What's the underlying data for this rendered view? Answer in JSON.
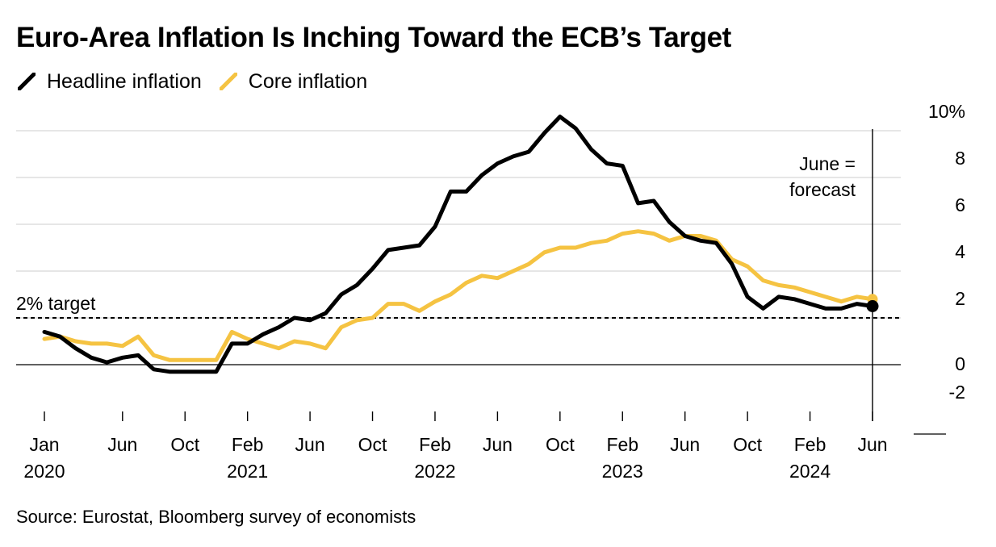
{
  "title": "Euro-Area Inflation Is Inching Toward the ECB’s Target",
  "legend": [
    {
      "label": "Headline inflation",
      "color": "#000000"
    },
    {
      "label": "Core inflation",
      "color": "#f5c342"
    }
  ],
  "source": "Source: Eurostat, Bloomberg survey of economists",
  "chart_data": {
    "type": "line",
    "x": [
      "2020-01",
      "2020-02",
      "2020-03",
      "2020-04",
      "2020-05",
      "2020-06",
      "2020-07",
      "2020-08",
      "2020-09",
      "2020-10",
      "2020-11",
      "2020-12",
      "2021-01",
      "2021-02",
      "2021-03",
      "2021-04",
      "2021-05",
      "2021-06",
      "2021-07",
      "2021-08",
      "2021-09",
      "2021-10",
      "2021-11",
      "2021-12",
      "2022-01",
      "2022-02",
      "2022-03",
      "2022-04",
      "2022-05",
      "2022-06",
      "2022-07",
      "2022-08",
      "2022-09",
      "2022-10",
      "2022-11",
      "2022-12",
      "2023-01",
      "2023-02",
      "2023-03",
      "2023-04",
      "2023-05",
      "2023-06",
      "2023-07",
      "2023-08",
      "2023-09",
      "2023-10",
      "2023-11",
      "2023-12",
      "2024-01",
      "2024-02",
      "2024-03",
      "2024-04",
      "2024-05",
      "2024-06"
    ],
    "series": [
      {
        "name": "Headline inflation",
        "color": "#000000",
        "values": [
          1.4,
          1.2,
          0.7,
          0.3,
          0.1,
          0.3,
          0.4,
          -0.2,
          -0.3,
          -0.3,
          -0.3,
          -0.3,
          0.9,
          0.9,
          1.3,
          1.6,
          2.0,
          1.9,
          2.2,
          3.0,
          3.4,
          4.1,
          4.9,
          5.0,
          5.1,
          5.9,
          7.4,
          7.4,
          8.1,
          8.6,
          8.9,
          9.1,
          9.9,
          10.6,
          10.1,
          9.2,
          8.6,
          8.5,
          6.9,
          7.0,
          6.1,
          5.5,
          5.3,
          5.2,
          4.3,
          2.9,
          2.4,
          2.9,
          2.8,
          2.6,
          2.4,
          2.4,
          2.6,
          2.5
        ]
      },
      {
        "name": "Core inflation",
        "color": "#f5c342",
        "values": [
          1.1,
          1.2,
          1.0,
          0.9,
          0.9,
          0.8,
          1.2,
          0.4,
          0.2,
          0.2,
          0.2,
          0.2,
          1.4,
          1.1,
          0.9,
          0.7,
          1.0,
          0.9,
          0.7,
          1.6,
          1.9,
          2.0,
          2.6,
          2.6,
          2.3,
          2.7,
          3.0,
          3.5,
          3.8,
          3.7,
          4.0,
          4.3,
          4.8,
          5.0,
          5.0,
          5.2,
          5.3,
          5.6,
          5.7,
          5.6,
          5.3,
          5.5,
          5.5,
          5.3,
          4.5,
          4.2,
          3.6,
          3.4,
          3.3,
          3.1,
          2.9,
          2.7,
          2.9,
          2.8
        ]
      }
    ],
    "xticks": [
      {
        "month": "Jan",
        "year": "2020",
        "x": "2020-01"
      },
      {
        "month": "Jun",
        "year": "",
        "x": "2020-06"
      },
      {
        "month": "Oct",
        "year": "",
        "x": "2020-10"
      },
      {
        "month": "Feb",
        "year": "2021",
        "x": "2021-02"
      },
      {
        "month": "Jun",
        "year": "",
        "x": "2021-06"
      },
      {
        "month": "Oct",
        "year": "",
        "x": "2021-10"
      },
      {
        "month": "Feb",
        "year": "2022",
        "x": "2022-02"
      },
      {
        "month": "Jun",
        "year": "",
        "x": "2022-06"
      },
      {
        "month": "Oct",
        "year": "",
        "x": "2022-10"
      },
      {
        "month": "Feb",
        "year": "2023",
        "x": "2023-02"
      },
      {
        "month": "Jun",
        "year": "",
        "x": "2023-06"
      },
      {
        "month": "Oct",
        "year": "",
        "x": "2023-10"
      },
      {
        "month": "Feb",
        "year": "2024",
        "x": "2024-02"
      },
      {
        "month": "Jun",
        "year": "",
        "x": "2024-06"
      }
    ],
    "yticks": [
      {
        "value": 10,
        "label": "10%"
      },
      {
        "value": 8,
        "label": "8"
      },
      {
        "value": 6,
        "label": "6"
      },
      {
        "value": 4,
        "label": "4"
      },
      {
        "value": 2,
        "label": "2"
      },
      {
        "value": 0,
        "label": "0"
      },
      {
        "value": -2,
        "label": "-2"
      }
    ],
    "ylim": [
      -2,
      10
    ],
    "xlim": [
      "2020-01",
      "2024-06"
    ],
    "y_axis_position": "right",
    "grid": true,
    "legend_position": "top-left",
    "target_line": {
      "value": 2.0,
      "label": "2% target"
    },
    "forecast_marker": {
      "x": "2024-06",
      "label_lines": [
        "June =",
        "forecast"
      ]
    }
  }
}
